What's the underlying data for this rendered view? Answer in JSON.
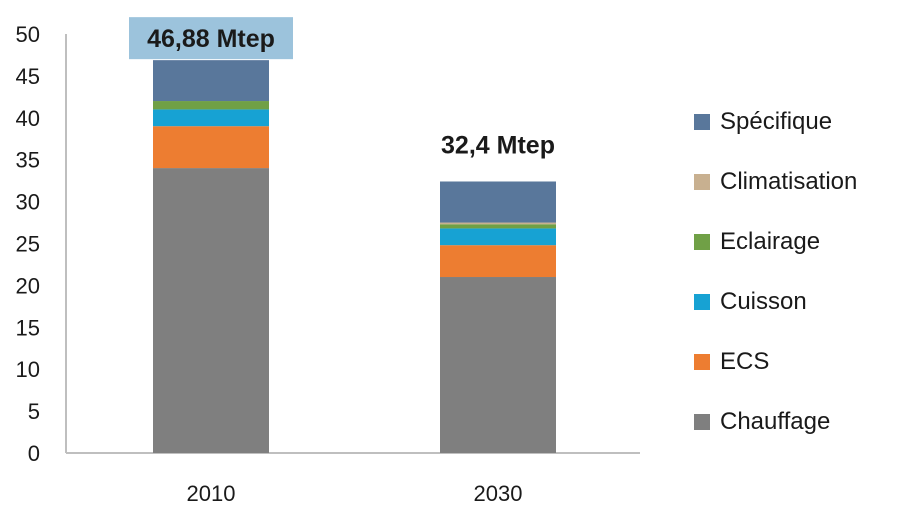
{
  "chart_data": {
    "type": "bar",
    "stacked": true,
    "categories": [
      "2010",
      "2030"
    ],
    "series": [
      {
        "name": "Chauffage",
        "color": "#7f7f7f",
        "values": [
          34.0,
          21.0
        ]
      },
      {
        "name": "ECS",
        "color": "#ed7d31",
        "values": [
          5.0,
          3.8
        ]
      },
      {
        "name": "Cuisson",
        "color": "#17a2d3",
        "values": [
          2.0,
          2.0
        ]
      },
      {
        "name": "Eclairage",
        "color": "#70a046",
        "values": [
          1.0,
          0.5
        ]
      },
      {
        "name": "Climatisation",
        "color": "#c8b090",
        "values": [
          0.0,
          0.2
        ]
      },
      {
        "name": "Spécifique",
        "color": "#59779b",
        "values": [
          4.88,
          4.9
        ]
      }
    ],
    "totals_labels": [
      "46,88 Mtep",
      "32,4 Mtep"
    ],
    "total_label_highlight": [
      "#9cc3dc",
      null
    ],
    "ylim": [
      0,
      50
    ],
    "yticks": [
      0,
      5,
      10,
      15,
      20,
      25,
      30,
      35,
      40,
      45,
      50
    ],
    "grid": false,
    "legend_position": "right",
    "legend_order": [
      "Spécifique",
      "Climatisation",
      "Eclairage",
      "Cuisson",
      "ECS",
      "Chauffage"
    ],
    "title": "",
    "xlabel": "",
    "ylabel": ""
  }
}
